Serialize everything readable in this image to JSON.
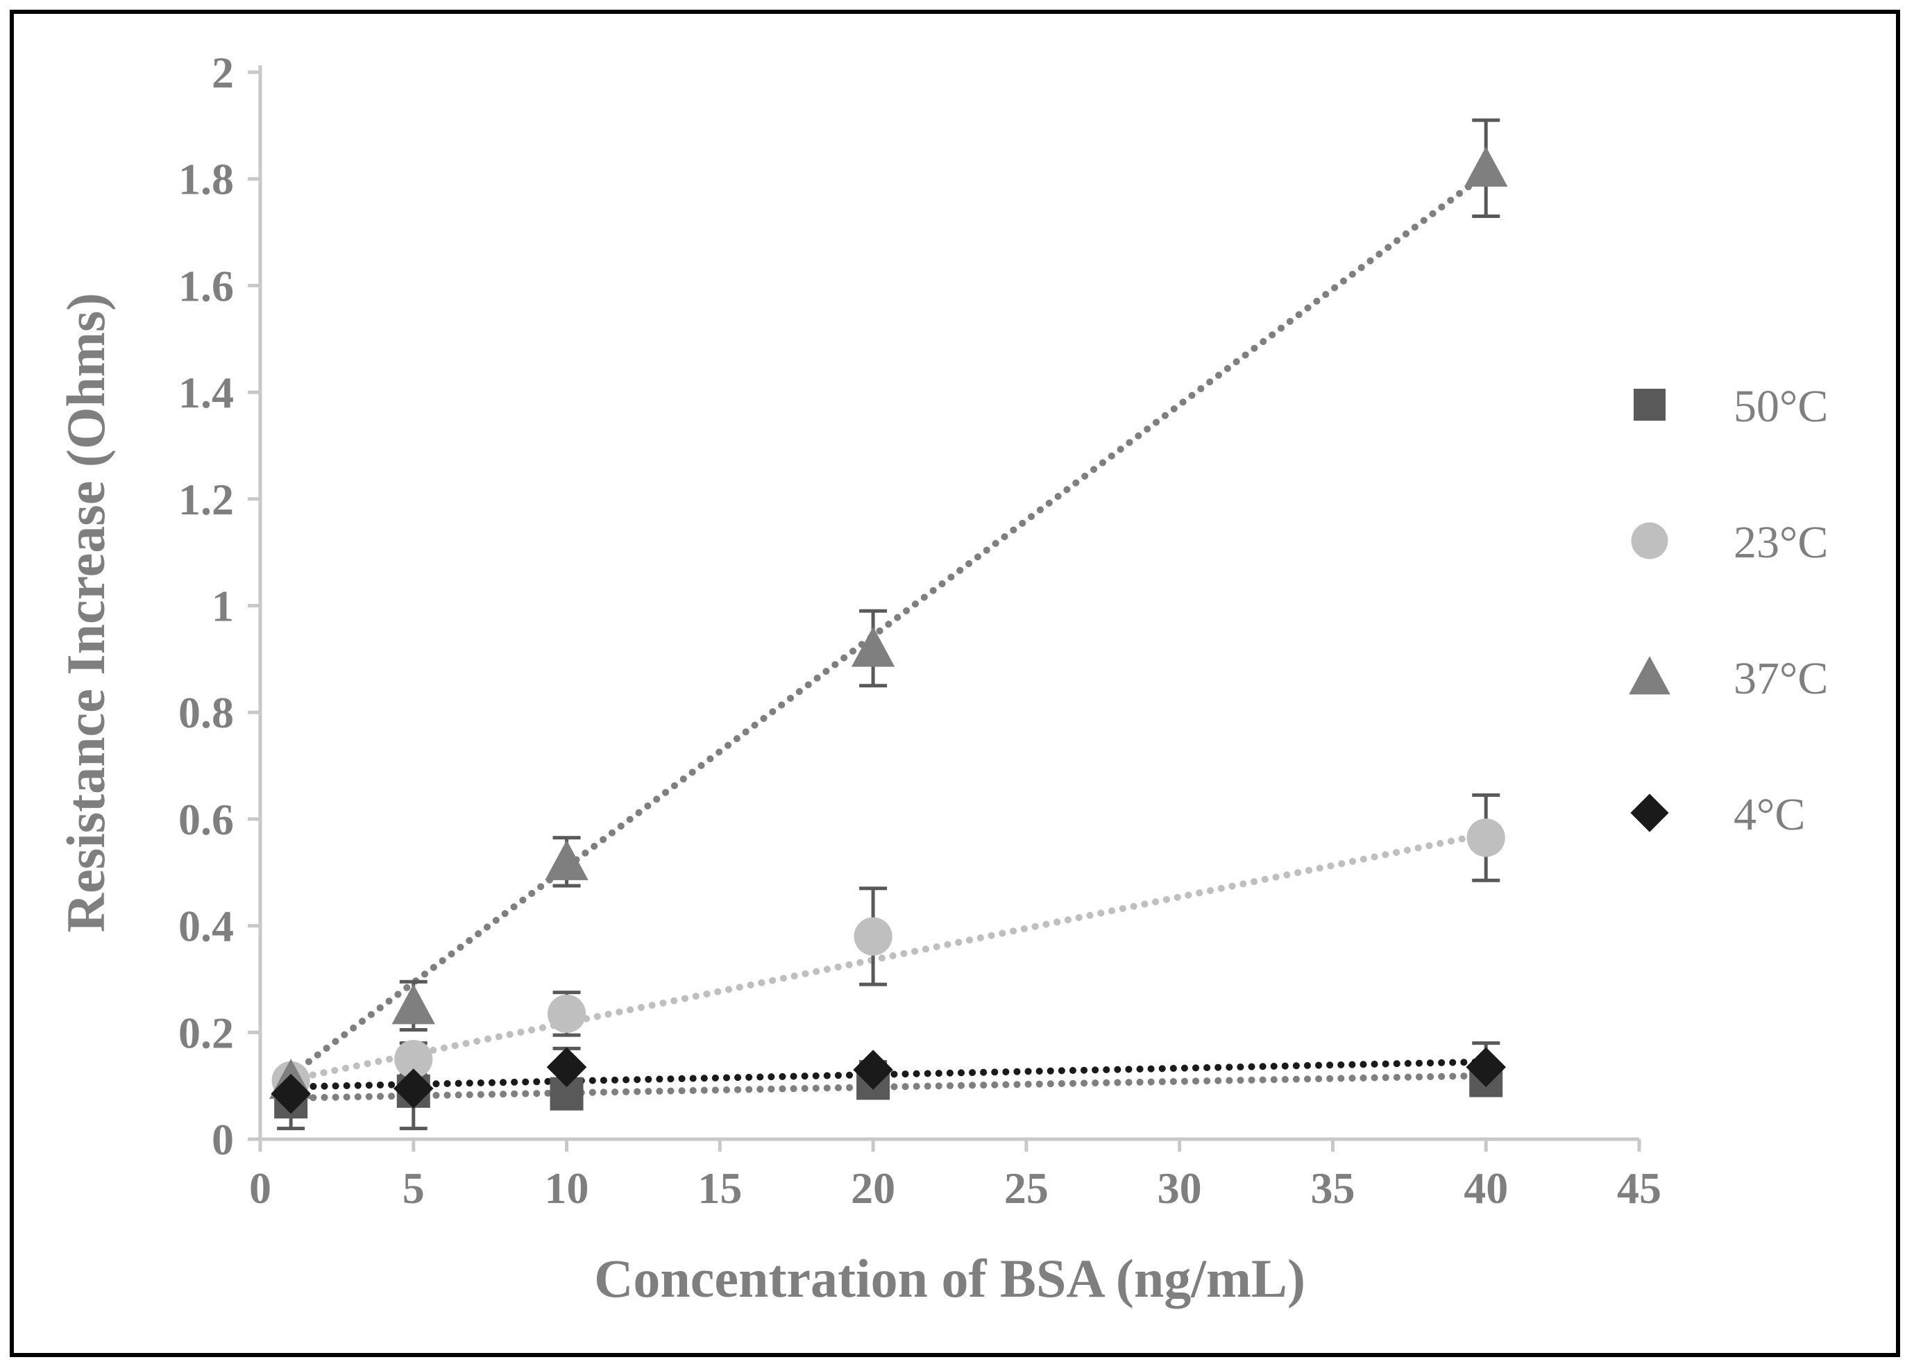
{
  "chart_data": {
    "type": "scatter",
    "title": "",
    "xlabel": "Concentration of BSA (ng/mL)",
    "ylabel": "Resistance Increase (Ohms)",
    "xlim": [
      0,
      45
    ],
    "ylim": [
      0,
      2
    ],
    "x_ticks": [
      0,
      5,
      10,
      15,
      20,
      25,
      30,
      35,
      40,
      45
    ],
    "y_ticks": [
      0,
      0.2,
      0.4,
      0.6,
      0.8,
      1,
      1.2,
      1.4,
      1.6,
      1.8,
      2
    ],
    "x_tick_labels": [
      "0",
      "5",
      "10",
      "15",
      "20",
      "25",
      "30",
      "35",
      "40",
      "45"
    ],
    "y_tick_labels": [
      "0",
      "0.2",
      "0.4",
      "0.6",
      "0.8",
      "1",
      "1.2",
      "1.4",
      "1.6",
      "1.8",
      "2"
    ],
    "grid": false,
    "legend_position": "right",
    "trendline": "linear, dotted",
    "series": [
      {
        "name": "50°C",
        "marker": "square",
        "color": "#595959",
        "x": [
          1,
          5,
          10,
          20,
          40
        ],
        "y": [
          0.07,
          0.09,
          0.085,
          0.105,
          0.11
        ],
        "error": [
          0.05,
          0.07,
          0.015,
          0.02,
          0.02
        ],
        "trend": [
          0.077,
          0.119
        ]
      },
      {
        "name": "23°C",
        "marker": "circle",
        "color": "#bfbfbf",
        "x": [
          1,
          5,
          10,
          20,
          40
        ],
        "y": [
          0.11,
          0.15,
          0.235,
          0.38,
          0.565
        ],
        "error": [
          0.02,
          0.03,
          0.04,
          0.09,
          0.08
        ],
        "trend": [
          0.112,
          0.572
        ]
      },
      {
        "name": "37°C",
        "marker": "triangle",
        "color": "#7f7f7f",
        "x": [
          1,
          5,
          10,
          20,
          40
        ],
        "y": [
          0.11,
          0.25,
          0.52,
          0.92,
          1.82
        ],
        "error": [
          0.02,
          0.045,
          0.045,
          0.07,
          0.09
        ],
        "trend": [
          0.12,
          1.81
        ]
      },
      {
        "name": "4°C",
        "marker": "diamond",
        "color": "#1a1a1a",
        "x": [
          1,
          5,
          10,
          20,
          40
        ],
        "y": [
          0.085,
          0.095,
          0.135,
          0.13,
          0.135
        ],
        "error": [
          0.01,
          0.01,
          0.035,
          0.015,
          0.045
        ],
        "trend": [
          0.098,
          0.145
        ]
      }
    ]
  }
}
